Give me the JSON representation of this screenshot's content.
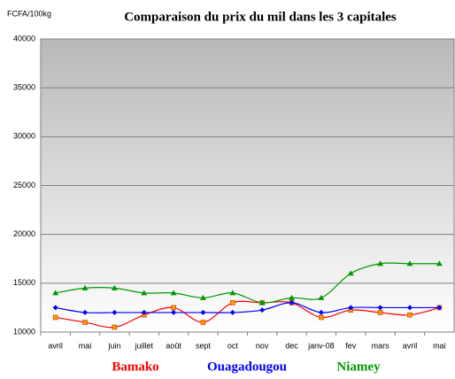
{
  "chart_data": {
    "type": "line",
    "title": "Comparaison du prix du mil dans les 3 capitales",
    "y_label": "FCFA/100kg",
    "categories": [
      "avril",
      "mai",
      "juin",
      "juillet",
      "août",
      "sept",
      "oct",
      "nov",
      "dec",
      "janv-08",
      "fev",
      "mars",
      "avril",
      "mai"
    ],
    "series": [
      {
        "name": "Bamako",
        "color": "#ff0000",
        "marker_color": "#ff9900",
        "marker": "square",
        "values": [
          11500,
          11000,
          10500,
          11750,
          12500,
          11000,
          13000,
          13000,
          13000,
          11500,
          12250,
          12000,
          11750,
          12500
        ]
      },
      {
        "name": "Ouagadougou",
        "color": "#0000ff",
        "marker_color": "#0000ff",
        "marker": "diamond",
        "values": [
          12500,
          12000,
          12000,
          12000,
          12000,
          12000,
          12000,
          12250,
          13000,
          12000,
          12500,
          12500,
          12500,
          12500
        ]
      },
      {
        "name": "Niamey",
        "color": "#009900",
        "marker_color": "#009900",
        "marker": "triangle",
        "values": [
          14000,
          14500,
          14500,
          14000,
          14000,
          13500,
          14000,
          13000,
          13500,
          13500,
          16000,
          17000,
          17000,
          17000
        ]
      }
    ],
    "ylim": [
      10000,
      40000
    ],
    "yticks": [
      10000,
      15000,
      20000,
      25000,
      30000,
      35000,
      40000
    ],
    "grid": true
  }
}
